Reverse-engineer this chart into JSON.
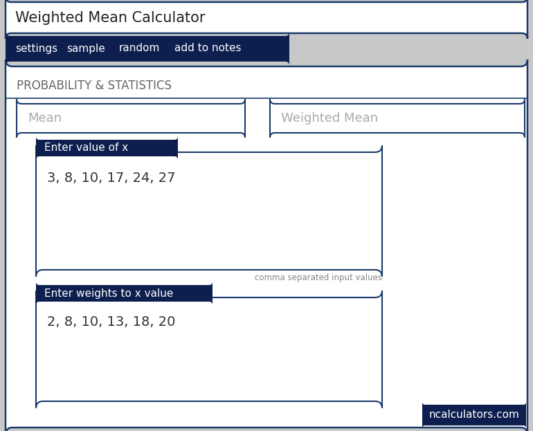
{
  "title": "Weighted Mean Calculator",
  "nav_items": [
    "settings",
    "sample",
    "random",
    "add to notes"
  ],
  "section_title": "PROBABILITY & STATISTICS",
  "input1_label": "Mean",
  "input2_label": "Weighted Mean",
  "box1_tab": "Enter value of x",
  "box1_content": "3, 8, 10, 17, 24, 27",
  "box1_hint": "comma separated input values",
  "box2_tab": "Enter weights to x value",
  "box2_content": "2, 8, 10, 13, 18, 20",
  "footer_text": "ncalculators.com",
  "navy": "#0d1f4e",
  "dark_navy": "#0d1f4e",
  "border_color": "#1a3a6b",
  "bg_white": "#ffffff",
  "bg_light": "#f5f5f5",
  "text_dark": "#222222",
  "text_gray": "#888888",
  "text_hint": "#777777",
  "outer_bg": "#c8c8c8"
}
